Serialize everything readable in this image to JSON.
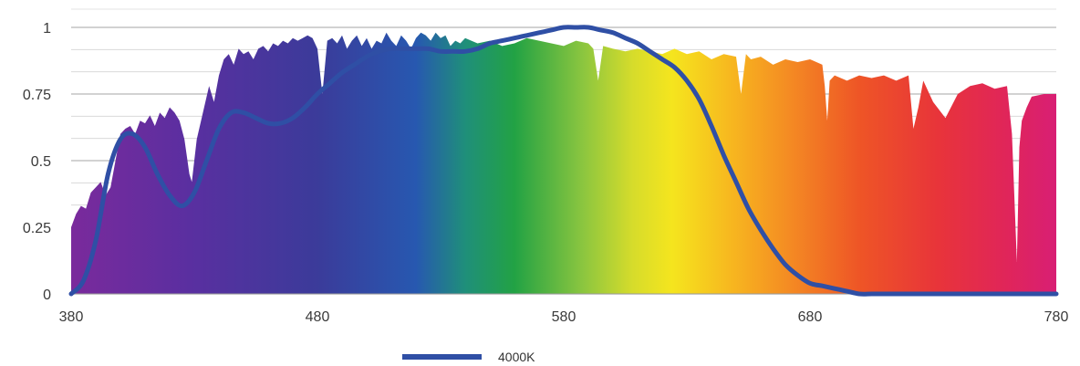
{
  "chart_data": {
    "type": "area",
    "title": "",
    "xlabel": "",
    "ylabel": "",
    "xlim": [
      380,
      780
    ],
    "ylim": [
      0,
      1
    ],
    "x_ticks": [
      "380",
      "480",
      "580",
      "680",
      "780"
    ],
    "y_ticks": [
      "0",
      "0.25",
      "0.5",
      "0.75",
      "1"
    ],
    "grid": true,
    "legend": "bottom-center",
    "spectrum_fill": {
      "description_colors": "rainbow gradient from violet (380) to magenta (780)",
      "x": [
        380,
        382,
        384,
        386,
        388,
        390,
        392,
        394,
        396,
        398,
        400,
        402,
        404,
        406,
        408,
        410,
        412,
        414,
        416,
        418,
        420,
        422,
        424,
        426,
        428,
        429,
        430,
        431,
        432,
        434,
        436,
        438,
        440,
        442,
        444,
        446,
        448,
        450,
        452,
        454,
        456,
        458,
        460,
        462,
        464,
        466,
        468,
        470,
        472,
        474,
        476,
        478,
        480,
        482,
        484,
        486,
        488,
        490,
        492,
        494,
        496,
        498,
        500,
        502,
        504,
        506,
        508,
        510,
        512,
        514,
        516,
        518,
        520,
        522,
        524,
        526,
        528,
        530,
        532,
        534,
        536,
        538,
        540,
        545,
        550,
        555,
        560,
        565,
        570,
        575,
        580,
        585,
        590,
        592,
        594,
        596,
        600,
        605,
        610,
        615,
        620,
        625,
        630,
        635,
        640,
        645,
        650,
        652,
        654,
        656,
        660,
        665,
        670,
        675,
        680,
        685,
        686,
        687,
        688,
        690,
        695,
        700,
        705,
        710,
        715,
        720,
        722,
        724,
        726,
        730,
        735,
        740,
        745,
        750,
        755,
        760,
        762,
        764,
        765,
        766,
        768,
        770,
        775,
        780
      ],
      "y": [
        0.25,
        0.3,
        0.33,
        0.32,
        0.38,
        0.4,
        0.42,
        0.37,
        0.4,
        0.5,
        0.6,
        0.62,
        0.63,
        0.6,
        0.65,
        0.64,
        0.67,
        0.63,
        0.68,
        0.66,
        0.7,
        0.68,
        0.65,
        0.58,
        0.45,
        0.42,
        0.5,
        0.58,
        0.62,
        0.7,
        0.78,
        0.72,
        0.82,
        0.88,
        0.9,
        0.86,
        0.92,
        0.9,
        0.91,
        0.88,
        0.92,
        0.93,
        0.91,
        0.94,
        0.93,
        0.95,
        0.94,
        0.96,
        0.95,
        0.96,
        0.97,
        0.96,
        0.92,
        0.75,
        0.95,
        0.96,
        0.94,
        0.97,
        0.92,
        0.95,
        0.97,
        0.93,
        0.96,
        0.92,
        0.95,
        0.94,
        0.98,
        0.95,
        0.93,
        0.97,
        0.95,
        0.92,
        0.96,
        0.98,
        0.97,
        0.95,
        0.98,
        0.96,
        0.97,
        0.93,
        0.95,
        0.94,
        0.96,
        0.94,
        0.95,
        0.93,
        0.94,
        0.96,
        0.95,
        0.94,
        0.93,
        0.95,
        0.94,
        0.92,
        0.8,
        0.93,
        0.92,
        0.91,
        0.92,
        0.91,
        0.9,
        0.92,
        0.9,
        0.91,
        0.88,
        0.9,
        0.89,
        0.75,
        0.9,
        0.88,
        0.89,
        0.86,
        0.88,
        0.87,
        0.88,
        0.86,
        0.78,
        0.65,
        0.8,
        0.82,
        0.8,
        0.82,
        0.81,
        0.82,
        0.8,
        0.82,
        0.62,
        0.7,
        0.8,
        0.72,
        0.66,
        0.75,
        0.78,
        0.79,
        0.77,
        0.78,
        0.6,
        0.12,
        0.55,
        0.65,
        0.7,
        0.74,
        0.75,
        0.75
      ]
    },
    "series": [
      {
        "name": "4000K",
        "color": "#2f4fa5",
        "x": [
          380,
          385,
          390,
          395,
          400,
          405,
          410,
          415,
          420,
          425,
          430,
          435,
          440,
          445,
          450,
          455,
          460,
          465,
          470,
          475,
          480,
          485,
          490,
          495,
          500,
          505,
          510,
          515,
          520,
          525,
          530,
          535,
          540,
          545,
          550,
          555,
          560,
          565,
          570,
          575,
          580,
          585,
          590,
          595,
          600,
          605,
          610,
          615,
          620,
          625,
          630,
          635,
          640,
          645,
          650,
          655,
          660,
          665,
          670,
          675,
          680,
          685,
          690,
          695,
          700,
          705,
          710,
          715,
          720,
          725,
          730,
          735,
          740,
          745,
          750,
          755,
          760,
          765,
          770,
          775,
          780
        ],
        "y": [
          0.0,
          0.05,
          0.2,
          0.45,
          0.58,
          0.6,
          0.55,
          0.45,
          0.37,
          0.33,
          0.38,
          0.5,
          0.62,
          0.68,
          0.68,
          0.66,
          0.64,
          0.64,
          0.66,
          0.7,
          0.75,
          0.79,
          0.83,
          0.86,
          0.89,
          0.91,
          0.92,
          0.92,
          0.92,
          0.92,
          0.91,
          0.91,
          0.91,
          0.92,
          0.94,
          0.95,
          0.96,
          0.97,
          0.98,
          0.99,
          1.0,
          1.0,
          1.0,
          0.99,
          0.98,
          0.96,
          0.94,
          0.91,
          0.88,
          0.85,
          0.8,
          0.73,
          0.63,
          0.52,
          0.42,
          0.32,
          0.24,
          0.17,
          0.11,
          0.07,
          0.04,
          0.03,
          0.02,
          0.01,
          0.0,
          0.0,
          0.0,
          0.0,
          0.0,
          0.0,
          0.0,
          0.0,
          0.0,
          0.0,
          0.0,
          0.0,
          0.0,
          0.0,
          0.0,
          0.0,
          0.0
        ]
      }
    ]
  }
}
